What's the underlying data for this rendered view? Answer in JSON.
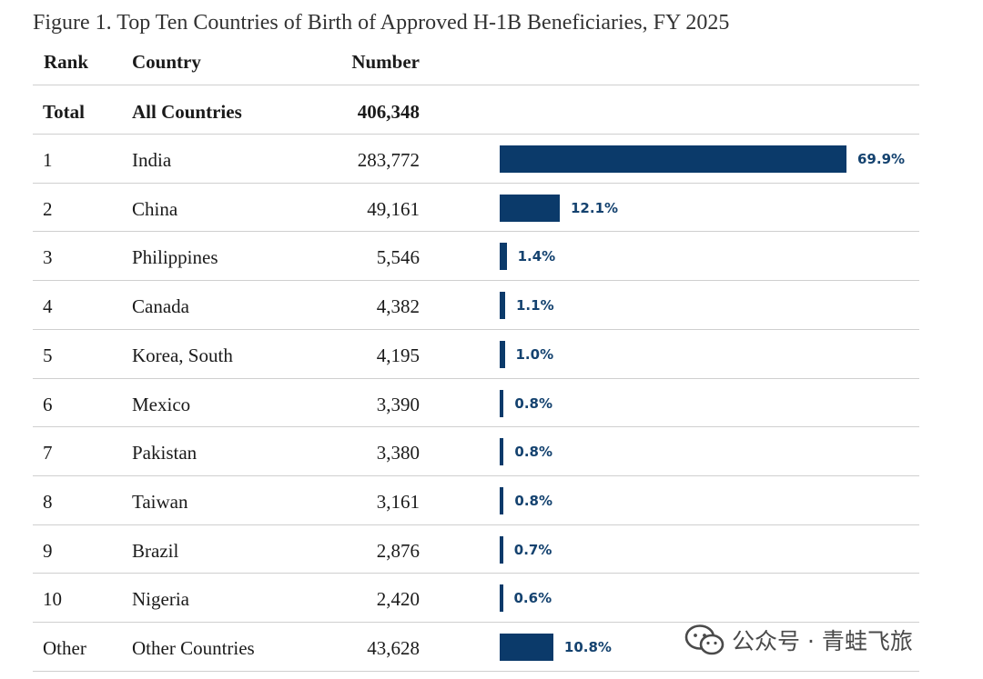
{
  "figure_title": "Figure 1. Top Ten Countries of Birth of Approved H-1B Beneficiaries, FY 2025",
  "headers": {
    "rank": "Rank",
    "country": "Country",
    "number": "Number"
  },
  "total": {
    "rank": "Total",
    "country": "All Countries",
    "number": "406,348"
  },
  "chart_data": {
    "type": "bar",
    "orientation": "horizontal",
    "title": "Figure 1. Top Ten Countries of Birth of Approved H-1B Beneficiaries, FY 2025",
    "xlim": [
      0,
      69.9
    ],
    "grid": false,
    "bar_color": "#0b3a6a",
    "label_color": "#14426f",
    "rows": [
      {
        "rank": "1",
        "country": "India",
        "number": "283,772",
        "value": 69.9,
        "label": "69.9%"
      },
      {
        "rank": "2",
        "country": "China",
        "number": "49,161",
        "value": 12.1,
        "label": "12.1%"
      },
      {
        "rank": "3",
        "country": "Philippines",
        "number": "5,546",
        "value": 1.4,
        "label": "1.4%"
      },
      {
        "rank": "4",
        "country": "Canada",
        "number": "4,382",
        "value": 1.1,
        "label": "1.1%"
      },
      {
        "rank": "5",
        "country": "Korea, South",
        "number": "4,195",
        "value": 1.0,
        "label": "1.0%"
      },
      {
        "rank": "6",
        "country": "Mexico",
        "number": "3,390",
        "value": 0.8,
        "label": "0.8%"
      },
      {
        "rank": "7",
        "country": "Pakistan",
        "number": "3,380",
        "value": 0.8,
        "label": "0.8%"
      },
      {
        "rank": "8",
        "country": "Taiwan",
        "number": "3,161",
        "value": 0.8,
        "label": "0.8%"
      },
      {
        "rank": "9",
        "country": "Brazil",
        "number": "2,876",
        "value": 0.7,
        "label": "0.7%"
      },
      {
        "rank": "10",
        "country": "Nigeria",
        "number": "2,420",
        "value": 0.6,
        "label": "0.6%"
      },
      {
        "rank": "Other",
        "country": "Other Countries",
        "number": "43,628",
        "value": 10.8,
        "label": "10.8%"
      }
    ]
  },
  "watermark": {
    "text": "公众号 · 青蛙飞旅",
    "icon": "wechat-icon"
  }
}
